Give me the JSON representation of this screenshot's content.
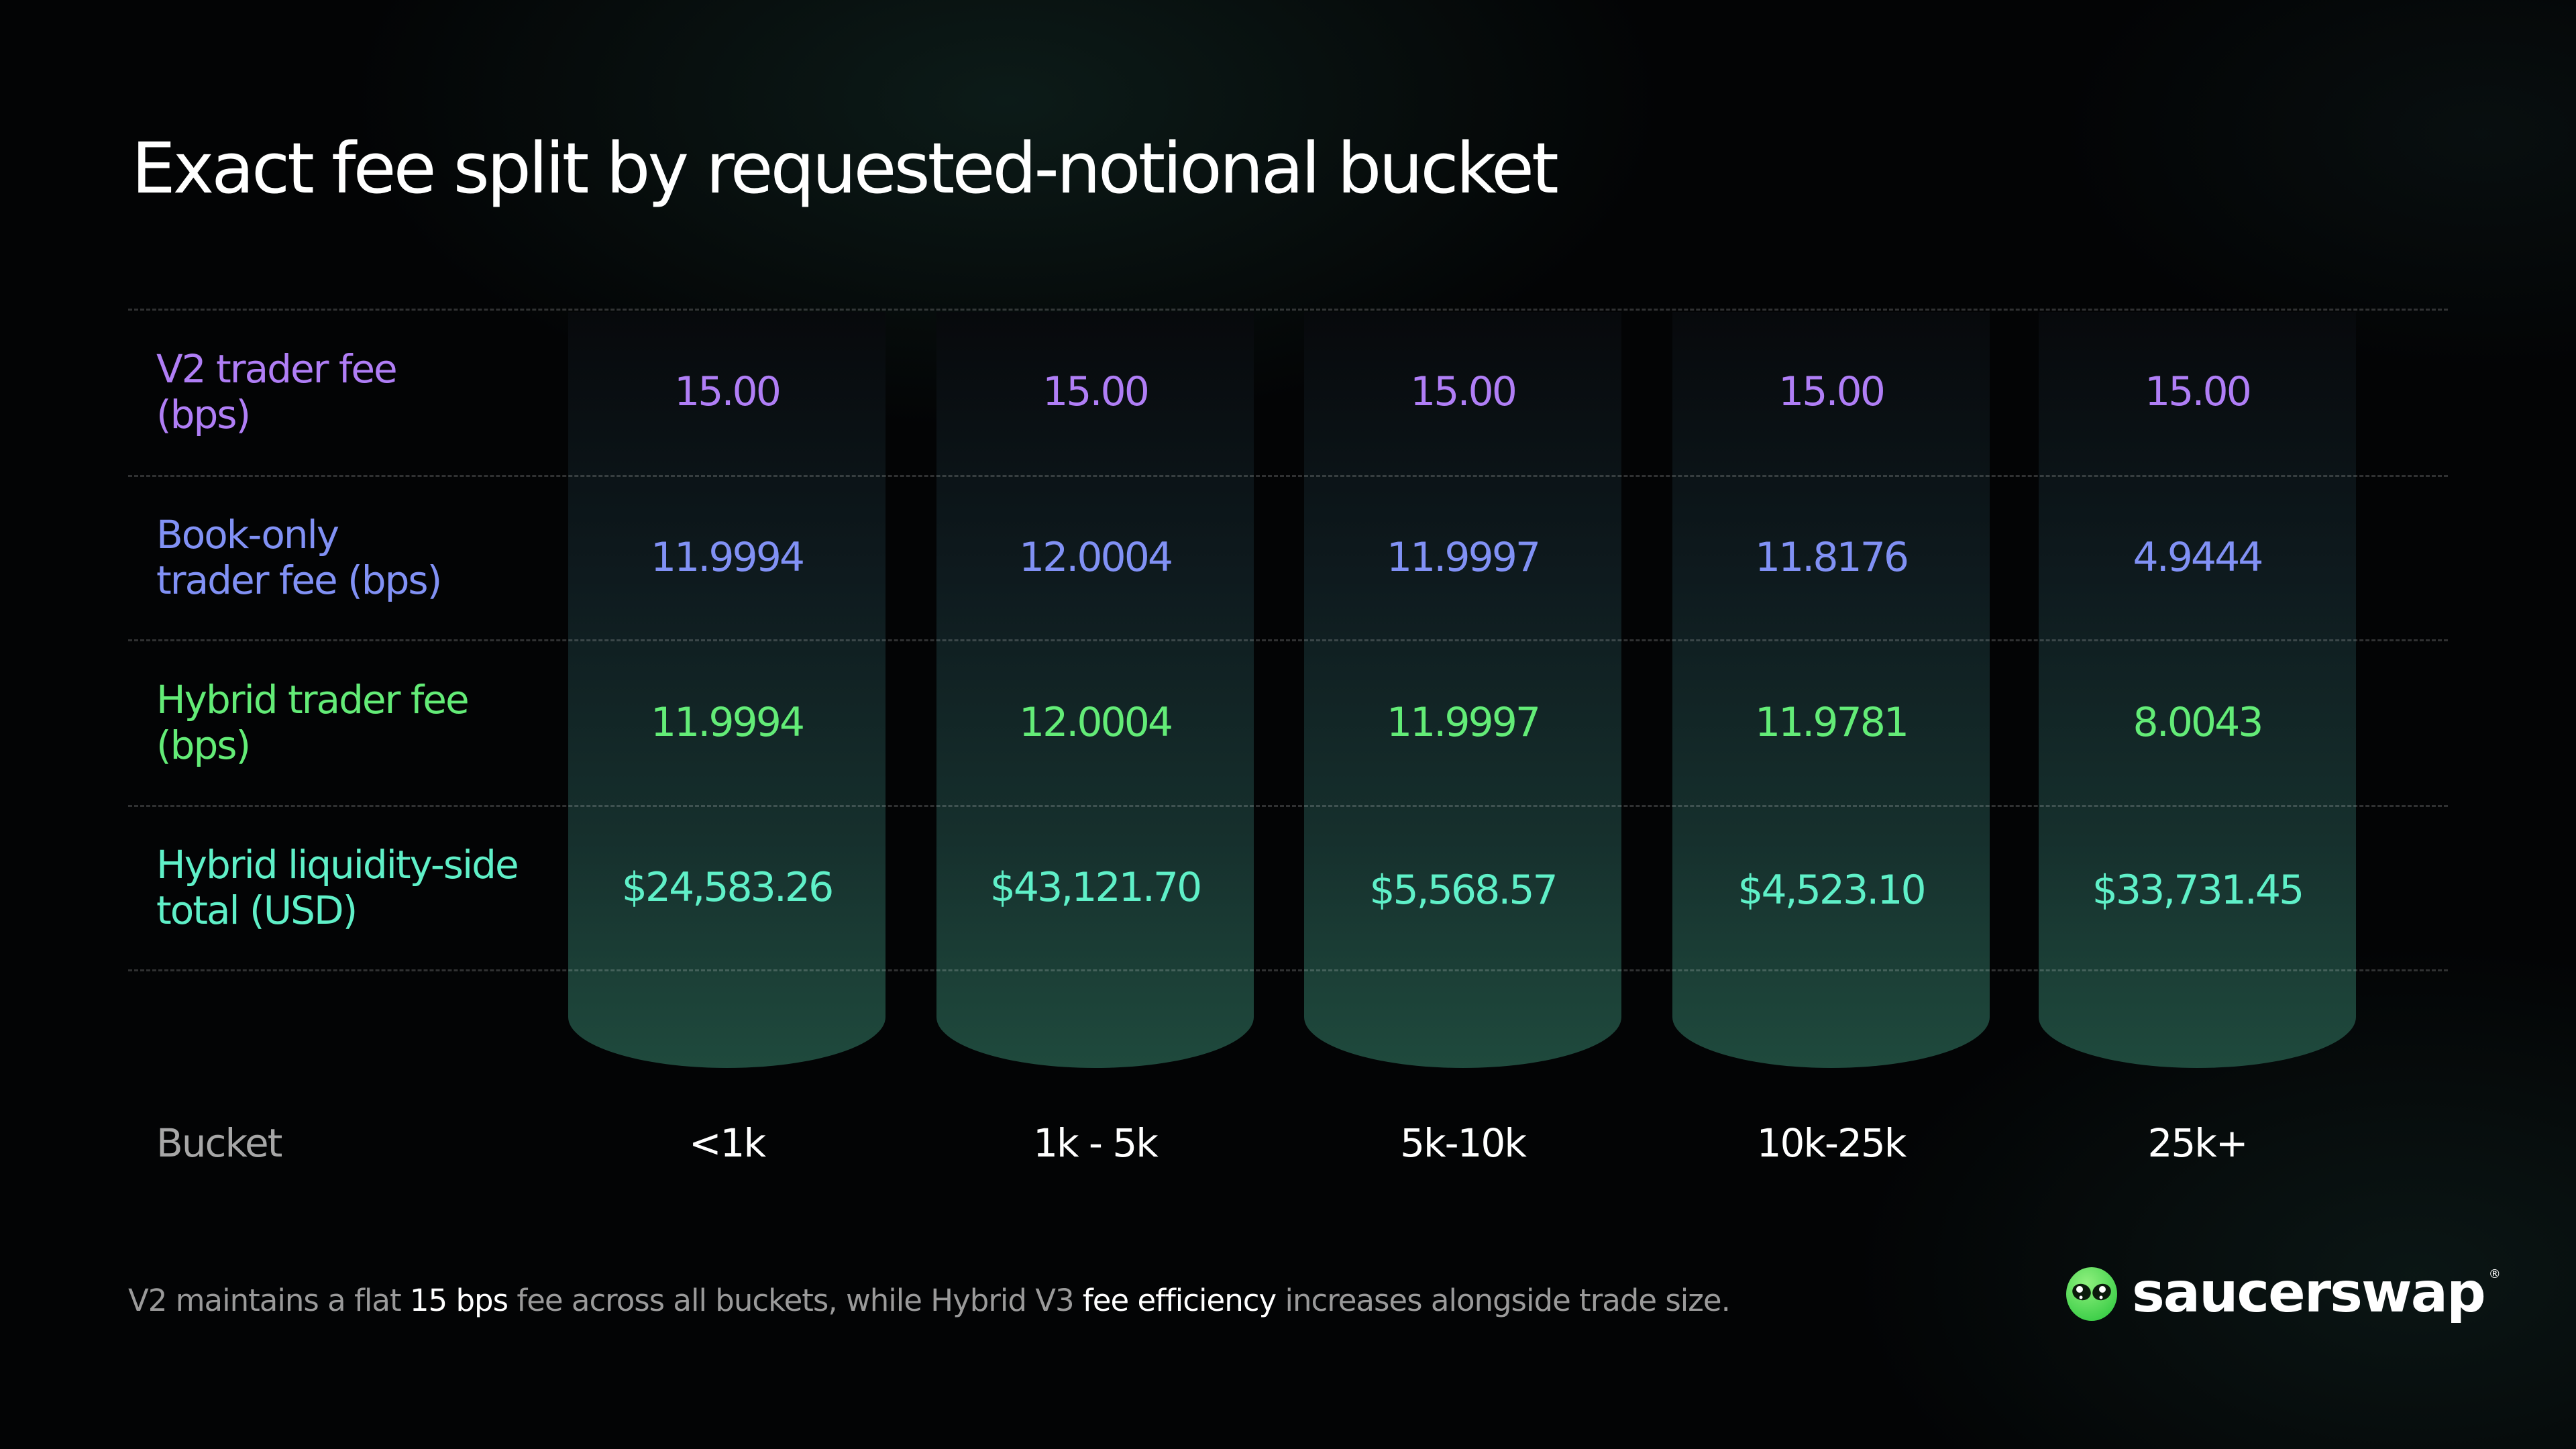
{
  "title": "Exact fee split by requested-notional bucket",
  "colors": {
    "v2": "#b07ef6",
    "book": "#8191f5",
    "hybrid": "#63ec77",
    "liquidity": "#5ff0c8",
    "bucket_label": "#a7a7a7",
    "accent": "#5fe36e"
  },
  "chart_data": {
    "type": "table",
    "title": "Exact fee split by requested-notional bucket",
    "column_header": "Bucket",
    "categories": [
      "<1k",
      "1k - 5k",
      "5k-10k",
      "10k-25k",
      "25k+"
    ],
    "rows": [
      {
        "label_line1": "V2 trader fee",
        "label_line2": "(bps)",
        "values": [
          "15.00",
          "15.00",
          "15.00",
          "15.00",
          "15.00"
        ]
      },
      {
        "label_line1": "Book-only",
        "label_line2": "trader fee (bps)",
        "values": [
          "11.9994",
          "12.0004",
          "11.9997",
          "11.8176",
          "4.9444"
        ]
      },
      {
        "label_line1": "Hybrid trader fee",
        "label_line2": "(bps)",
        "values": [
          "11.9994",
          "12.0004",
          "11.9997",
          "11.9781",
          "8.0043"
        ]
      },
      {
        "label_line1": "Hybrid liquidity-side",
        "label_line2": "total (USD)",
        "values": [
          "$24,583.26",
          "$43,121.70",
          "$5,568.57",
          "$4,523.10",
          "$33,731.45"
        ]
      }
    ]
  },
  "footer": {
    "part1": "V2 maintains a flat ",
    "hl1": "15 bps",
    "part2": " fee across all buckets, while Hybrid V3 ",
    "hl2": "fee efficiency",
    "part3": " increases alongside trade size."
  },
  "logo": {
    "text": "saucerswap",
    "reg": "®",
    "icon": "alien-head-icon"
  }
}
